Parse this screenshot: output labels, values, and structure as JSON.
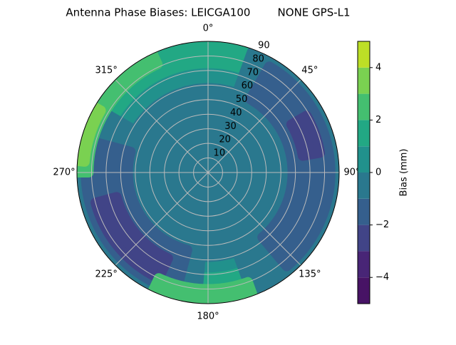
{
  "chart_data": {
    "type": "polar-contour",
    "title": "Antenna Phase Biases: LEICGA100        NONE GPS-L1",
    "rlim": [
      0,
      90
    ],
    "rticks": [
      10,
      20,
      30,
      40,
      50,
      60,
      70,
      80,
      90
    ],
    "thetaticks": [
      {
        "value": 0,
        "label": "0°"
      },
      {
        "value": 45,
        "label": "45°"
      },
      {
        "value": 90,
        "label": "90°"
      },
      {
        "value": 135,
        "label": "135°"
      },
      {
        "value": 180,
        "label": "180°"
      },
      {
        "value": 225,
        "label": "225°"
      },
      {
        "value": 270,
        "label": "270°"
      },
      {
        "value": 315,
        "label": "315°"
      }
    ],
    "grid": true,
    "levels": [
      -5,
      -4,
      -3,
      -2,
      -1,
      0,
      1,
      2,
      3,
      4,
      5
    ],
    "colors": [
      "#471365",
      "#482576",
      "#414487",
      "#355f8d",
      "#2a788e",
      "#21918c",
      "#22a884",
      "#44bf70",
      "#7ad151",
      "#bddf26"
    ],
    "colorbar_label": "Bias (mm)",
    "colorbar_ticks": [
      {
        "value": -4,
        "label": "−4"
      },
      {
        "value": -2,
        "label": "−2"
      },
      0,
      2,
      4
    ],
    "regions": [
      {
        "level": 0,
        "az": [
          0,
          360
        ],
        "zen": [
          0,
          90
        ]
      },
      {
        "level": 1,
        "az": [
          290,
          420
        ],
        "zen": [
          75,
          90
        ]
      },
      {
        "level": 1,
        "az": [
          140,
          230
        ],
        "zen": [
          72,
          90
        ]
      },
      {
        "level": 1,
        "az": [
          240,
          330
        ],
        "zen": [
          82,
          90
        ]
      },
      {
        "level": -1,
        "az": [
          0,
          360
        ],
        "zen": [
          0,
          58
        ]
      },
      {
        "level": -1,
        "az": [
          20,
          160
        ],
        "zen": [
          50,
          88
        ]
      },
      {
        "level": -1,
        "az": [
          185,
          300
        ],
        "zen": [
          45,
          88
        ]
      },
      {
        "level": -2,
        "az": [
          30,
          140
        ],
        "zen": [
          58,
          84
        ]
      },
      {
        "level": -2,
        "az": [
          195,
          285
        ],
        "zen": [
          55,
          84
        ]
      },
      {
        "level": -3,
        "az": [
          205,
          255
        ],
        "zen": [
          65,
          80
        ]
      },
      {
        "level": -3,
        "az": [
          60,
          80
        ],
        "zen": [
          66,
          78
        ]
      },
      {
        "level": 2,
        "az": [
          270,
          335
        ],
        "zen": [
          82,
          90
        ]
      },
      {
        "level": 2,
        "az": [
          160,
          205
        ],
        "zen": [
          80,
          90
        ]
      },
      {
        "level": 3,
        "az": [
          275,
          300
        ],
        "zen": [
          85,
          90
        ]
      }
    ]
  }
}
